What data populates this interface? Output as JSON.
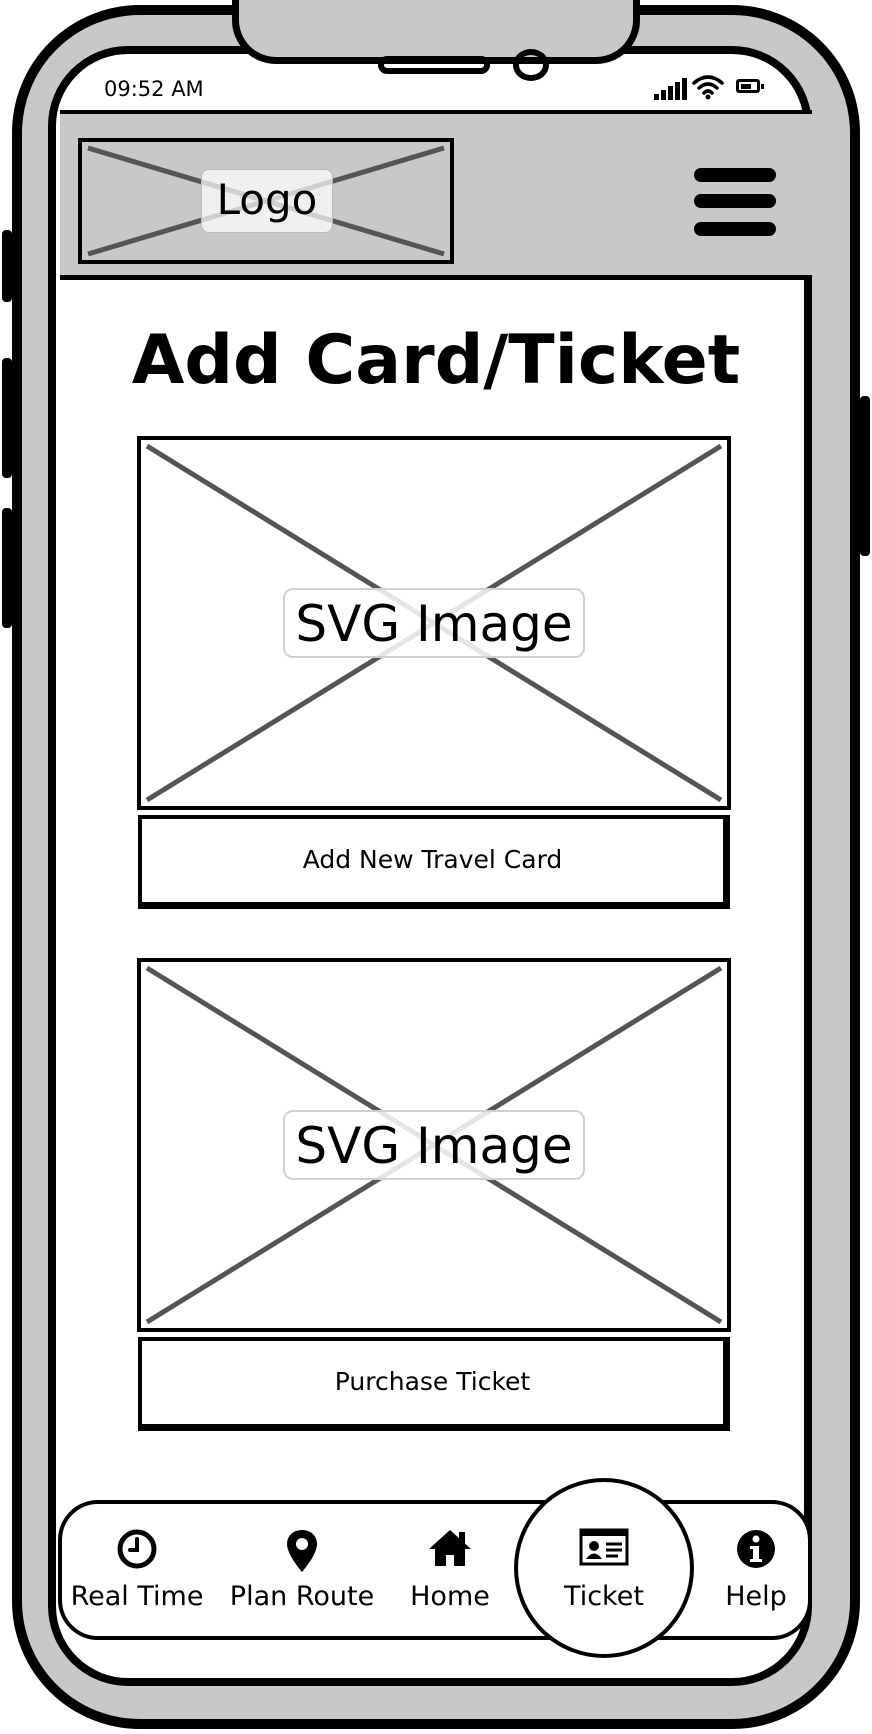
{
  "status_bar": {
    "time": "09:52 AM"
  },
  "header": {
    "logo_text": "Logo"
  },
  "page": {
    "title": "Add Card/Ticket"
  },
  "cards": [
    {
      "image_label": "SVG Image",
      "button_label": "Add New Travel Card"
    },
    {
      "image_label": "SVG Image",
      "button_label": "Purchase Ticket"
    }
  ],
  "bottom_nav": {
    "items": [
      {
        "label": "Real Time",
        "icon": "clock-icon"
      },
      {
        "label": "Plan Route",
        "icon": "map-pin-icon"
      },
      {
        "label": "Home",
        "icon": "home-icon"
      },
      {
        "label": "Ticket",
        "icon": "id-card-icon",
        "selected": true
      },
      {
        "label": "Help",
        "icon": "info-icon"
      }
    ]
  },
  "colors": {
    "frame": "#c8c8c8",
    "stroke": "#000000",
    "placeholder_x": "#555555"
  }
}
